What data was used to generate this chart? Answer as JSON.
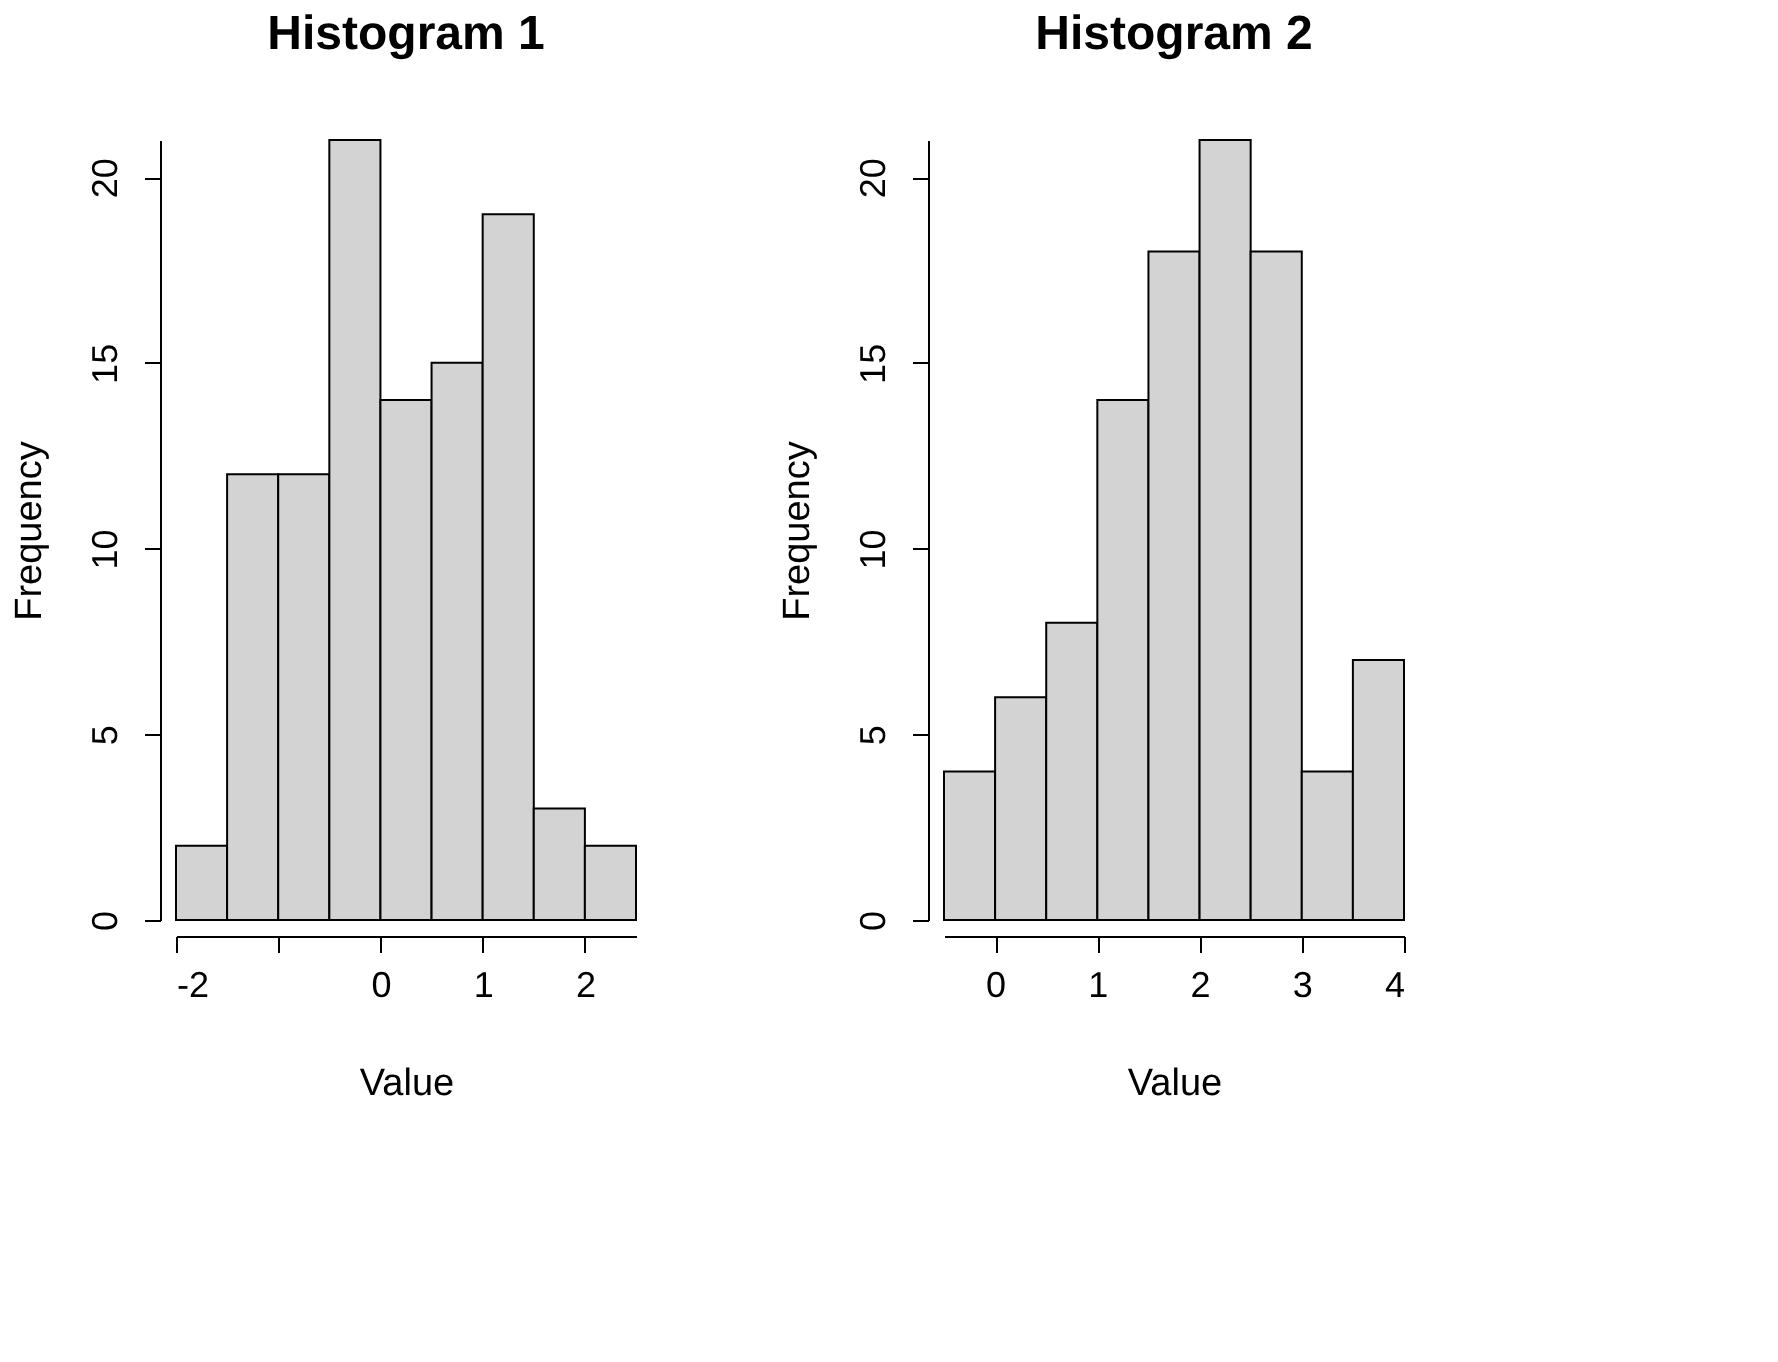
{
  "chart_data": [
    {
      "type": "histogram",
      "title": "Histogram 1",
      "xlabel": "Value",
      "ylabel": "Frequency",
      "bins": [
        -2,
        -1.5,
        -1,
        -0.5,
        0,
        0.5,
        1,
        1.5,
        2,
        2.5
      ],
      "values": [
        2,
        12,
        12,
        21,
        14,
        15,
        19,
        3,
        2
      ],
      "color": "#d3d3d3",
      "xlim": [
        -2,
        2.5
      ],
      "xticks": [
        -2,
        {
          "value": -1,
          "label": null
        },
        0,
        1,
        2
      ],
      "ylim": [
        0,
        21
      ],
      "yticks": [
        0,
        5,
        10,
        15,
        20
      ]
    },
    {
      "type": "histogram",
      "title": "Histogram 2",
      "xlabel": "Value",
      "ylabel": "Frequency",
      "bins": [
        -0.5,
        0,
        0.5,
        1,
        1.5,
        2,
        2.5,
        3,
        3.5,
        4
      ],
      "values": [
        4,
        6,
        8,
        14,
        18,
        21,
        18,
        4,
        7
      ],
      "color": "#d3d3d3",
      "xlim": [
        -0.5,
        4
      ],
      "xticks": [
        0,
        1,
        2,
        3,
        4
      ],
      "ylim": [
        0,
        21
      ],
      "yticks": [
        0,
        5,
        10,
        15,
        20
      ]
    }
  ]
}
